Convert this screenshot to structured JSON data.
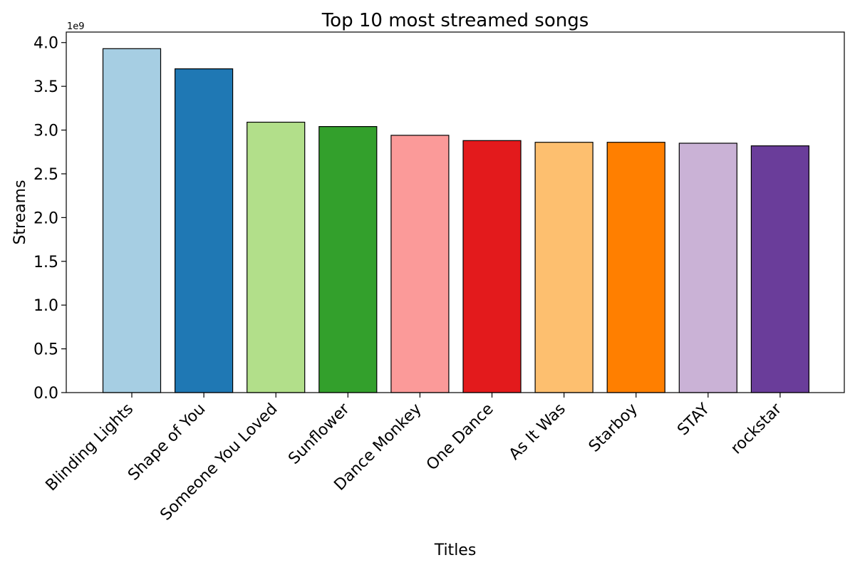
{
  "chart_data": {
    "type": "bar",
    "title": "Top 10 most streamed songs",
    "xlabel": "Titles",
    "ylabel": "Streams",
    "y_multiplier_label": "1e9",
    "categories": [
      "Blinding Lights",
      "Shape of You",
      "Someone You Loved",
      "Sunflower",
      "Dance Monkey",
      "One Dance",
      "As It Was",
      "Starboy",
      "STAY",
      "rockstar"
    ],
    "values": [
      3.93,
      3.7,
      3.09,
      3.04,
      2.94,
      2.88,
      2.86,
      2.86,
      2.85,
      2.82
    ],
    "colors": [
      "#a6cee3",
      "#1f78b4",
      "#b2df8a",
      "#33a02c",
      "#fb9a99",
      "#e31a1c",
      "#fdbf6f",
      "#ff7f00",
      "#cab2d6",
      "#6a3d9a"
    ],
    "ylim": [
      0,
      4.12
    ],
    "yticks": [
      0.0,
      0.5,
      1.0,
      1.5,
      2.0,
      2.5,
      3.0,
      3.5,
      4.0
    ],
    "ytick_labels": [
      "0.0",
      "0.5",
      "1.0",
      "1.5",
      "2.0",
      "2.5",
      "3.0",
      "3.5",
      "4.0"
    ],
    "grid": false,
    "legend": "none"
  }
}
